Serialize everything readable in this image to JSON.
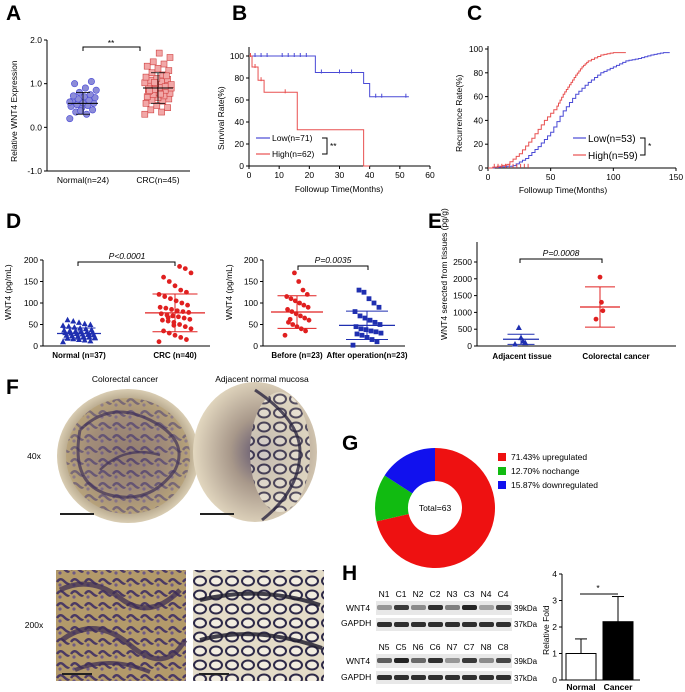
{
  "panel_labels": {
    "a": "A",
    "b": "B",
    "c": "C",
    "d": "D",
    "e": "E",
    "f": "F",
    "g": "G",
    "h": "H"
  },
  "colors": {
    "blue": "#4a4ad6",
    "red": "#e85050",
    "green": "#22aa22",
    "pink_fill": "#f2a7a7",
    "blue_fill": "#8c8cd8",
    "navy": "#1f2fb0"
  },
  "chart_data": [
    {
      "id": "A",
      "type": "scatter",
      "ylabel": "Relative WNT4 Expression",
      "yticks": [
        "2.0",
        "1.0",
        "0.0",
        "-1.0"
      ],
      "ylim": [
        -1.0,
        2.0
      ],
      "categories": [
        "Normal(n=24)",
        "CRC(n=45)"
      ],
      "significance": "**",
      "series": [
        {
          "name": "Normal(n=24)",
          "mean": 0.55,
          "sd": 0.25,
          "values": [
            0.2,
            0.3,
            0.35,
            0.4,
            0.45,
            0.48,
            0.5,
            0.52,
            0.55,
            0.56,
            0.6,
            0.62,
            0.65,
            0.68,
            0.7,
            0.72,
            0.75,
            0.8,
            0.85,
            0.9,
            1.0,
            1.05,
            0.38,
            0.58
          ]
        },
        {
          "name": "CRC(n=45)",
          "mean": 0.9,
          "sd": 0.35,
          "values": [
            0.3,
            0.35,
            0.4,
            0.45,
            0.5,
            0.55,
            0.6,
            0.62,
            0.65,
            0.68,
            0.7,
            0.72,
            0.75,
            0.78,
            0.8,
            0.82,
            0.85,
            0.87,
            0.9,
            0.92,
            0.95,
            0.97,
            1.0,
            1.02,
            1.05,
            1.08,
            1.1,
            1.12,
            1.15,
            1.2,
            1.25,
            1.3,
            1.35,
            1.4,
            1.45,
            1.5,
            1.6,
            1.7,
            0.88,
            0.93,
            1.03,
            0.98,
            0.76,
            0.84,
            1.18
          ]
        }
      ]
    },
    {
      "id": "B",
      "type": "line",
      "ylabel": "Survival Rate(%)",
      "xlabel": "Followup Time(Months)",
      "yticks": [
        "100",
        "80",
        "60",
        "40",
        "20",
        "0"
      ],
      "xticks": [
        "0",
        "10",
        "20",
        "30",
        "40",
        "50",
        "60"
      ],
      "xlim": [
        0,
        60
      ],
      "ylim": [
        0,
        100
      ],
      "significance": "**",
      "series": [
        {
          "name": "Low(n=71)",
          "x": [
            0,
            22,
            22,
            38,
            38,
            40,
            40,
            53
          ],
          "y": [
            100,
            100,
            85,
            85,
            75,
            75,
            63,
            63
          ]
        },
        {
          "name": "High(n=62)",
          "x": [
            0,
            1,
            1,
            3,
            3,
            5,
            5,
            16,
            16,
            38,
            38,
            40
          ],
          "y": [
            100,
            100,
            90,
            90,
            78,
            78,
            67,
            67,
            33,
            33,
            0,
            0
          ]
        }
      ]
    },
    {
      "id": "C",
      "type": "line",
      "ylabel": "Recurrence Rate(%)",
      "xlabel": "Followup Time(Months)",
      "yticks": [
        "100",
        "80",
        "60",
        "40",
        "20",
        "0"
      ],
      "xticks": [
        "0",
        "50",
        "100",
        "150"
      ],
      "xlim": [
        0,
        150
      ],
      "ylim": [
        0,
        100
      ],
      "significance": "*",
      "series": [
        {
          "name": "Low(n=53)",
          "x": [
            0,
            20,
            30,
            40,
            50,
            60,
            70,
            80,
            90,
            100,
            110,
            120,
            130,
            140,
            145
          ],
          "y": [
            0,
            2,
            8,
            18,
            30,
            48,
            62,
            72,
            80,
            85,
            90,
            92,
            95,
            97,
            97
          ]
        },
        {
          "name": "High(n=59)",
          "x": [
            0,
            15,
            25,
            35,
            45,
            55,
            60,
            65,
            70,
            75,
            80,
            90,
            100,
            110
          ],
          "y": [
            0,
            3,
            12,
            25,
            40,
            52,
            62,
            70,
            78,
            85,
            90,
            95,
            97,
            97
          ]
        }
      ]
    },
    {
      "id": "D1",
      "type": "scatter",
      "ylabel": "WNT4 (pg/mL)",
      "yticks": [
        "200",
        "150",
        "100",
        "50",
        "0"
      ],
      "ylim": [
        0,
        200
      ],
      "categories": [
        "Normal (n=37)",
        "CRC (n=40)"
      ],
      "pvalue": "P<0.0001",
      "series": [
        {
          "name": "Normal (n=37)",
          "mean": 29,
          "sd": 13,
          "values": [
            10,
            12,
            14,
            15,
            17,
            18,
            20,
            21,
            22,
            23,
            24,
            25,
            26,
            27,
            28,
            29,
            30,
            31,
            32,
            33,
            34,
            35,
            36,
            37,
            38,
            40,
            42,
            44,
            46,
            48,
            50,
            52,
            55,
            58,
            61,
            19,
            27
          ]
        },
        {
          "name": "CRC (n=40)",
          "mean": 77,
          "sd": 44,
          "values": [
            10,
            15,
            20,
            25,
            30,
            35,
            40,
            45,
            50,
            55,
            58,
            60,
            62,
            65,
            68,
            70,
            72,
            75,
            78,
            80,
            82,
            85,
            88,
            90,
            95,
            100,
            105,
            110,
            115,
            120,
            125,
            130,
            140,
            150,
            160,
            170,
            180,
            185,
            48,
            66
          ]
        }
      ]
    },
    {
      "id": "D2",
      "type": "scatter",
      "ylabel": "WNT4 (pg/mL)",
      "yticks": [
        "200",
        "150",
        "100",
        "50",
        "0"
      ],
      "ylim": [
        0,
        200
      ],
      "categories": [
        "Before  (n=23)",
        "After operation(n=23)"
      ],
      "pvalue": "P=0.0035",
      "series": [
        {
          "name": "Before  (n=23)",
          "mean": 79,
          "sd": 38,
          "values": [
            25,
            35,
            40,
            45,
            50,
            55,
            60,
            65,
            70,
            75,
            80,
            85,
            90,
            95,
            100,
            105,
            110,
            115,
            120,
            130,
            150,
            170,
            62
          ]
        },
        {
          "name": "After operation(n=23)",
          "mean": 48,
          "sd": 33,
          "values": [
            2,
            10,
            15,
            20,
            25,
            28,
            30,
            33,
            35,
            38,
            40,
            45,
            50,
            55,
            60,
            65,
            70,
            80,
            90,
            100,
            110,
            125,
            130
          ]
        }
      ]
    },
    {
      "id": "E",
      "type": "scatter",
      "ylabel": "WNT4 serected from tissues (pg/g)",
      "yticks": [
        "2500",
        "2000",
        "1500",
        "1000",
        "500",
        "0"
      ],
      "ylim": [
        0,
        2500
      ],
      "categories": [
        "Adjacent tissue",
        "Colorectal cancer"
      ],
      "pvalue": "P=0.0008",
      "series": [
        {
          "name": "Adjacent tissue",
          "mean": 200,
          "sd": 150,
          "values": [
            60,
            100,
            150,
            250,
            550
          ]
        },
        {
          "name": "Colorectal cancer",
          "mean": 1160,
          "sd": 600,
          "values": [
            800,
            1050,
            1300,
            2050
          ]
        }
      ]
    },
    {
      "id": "G",
      "type": "pie",
      "center_label": "Total=63",
      "slices": [
        {
          "label": "71.43% upregulated",
          "value": 71.43,
          "color": "#ee1111"
        },
        {
          "label": "12.70% nochange",
          "value": 12.7,
          "color": "#11bb11"
        },
        {
          "label": "15.87% downregulated",
          "value": 15.87,
          "color": "#1111ee"
        }
      ]
    },
    {
      "id": "H",
      "type": "bar",
      "ylabel": "Relative Fold",
      "yticks": [
        "4",
        "3",
        "2",
        "1",
        "0"
      ],
      "ylim": [
        0,
        4
      ],
      "categories": [
        "Normal",
        "Cancer"
      ],
      "values": [
        1.0,
        2.2
      ],
      "errors": [
        0.55,
        0.95
      ],
      "significance": "*"
    }
  ],
  "panel_f": {
    "col_labels": [
      "Colorectal cancer",
      "Adjacent normal mucosa"
    ],
    "row_labels": [
      "40x",
      "200x"
    ]
  },
  "panel_h": {
    "blot1_lanes": [
      "N1",
      "C1",
      "N2",
      "C2",
      "N3",
      "C3",
      "N4",
      "C4"
    ],
    "blot2_lanes": [
      "N5",
      "C5",
      "N6",
      "C6",
      "N7",
      "C7",
      "N8",
      "C8"
    ],
    "row_labels": [
      "WNT4",
      "GAPDH"
    ],
    "markers": [
      "39kDa",
      "37kDa"
    ]
  }
}
